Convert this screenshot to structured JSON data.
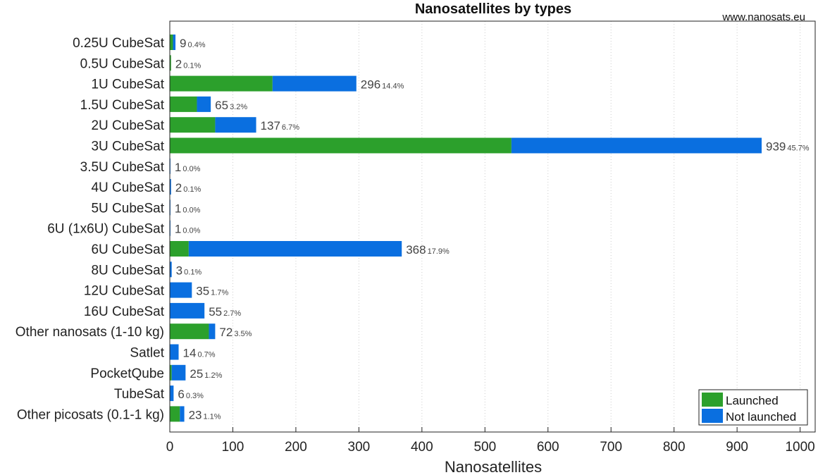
{
  "chart_data": {
    "type": "bar",
    "orientation": "horizontal",
    "stacked": true,
    "title": "Nanosatellites by types",
    "source": "www.nanosats.eu",
    "xlabel": "Nanosatellites",
    "ylabel": "",
    "xlim": [
      0,
      1023
    ],
    "xticks": [
      0,
      100,
      200,
      300,
      400,
      500,
      600,
      700,
      800,
      900,
      1000
    ],
    "grid": "vertical dotted",
    "legend_position": "bottom-right",
    "categories": [
      "0.25U CubeSat",
      "0.5U CubeSat",
      "1U CubeSat",
      "1.5U CubeSat",
      "2U CubeSat",
      "3U CubeSat",
      "3.5U CubeSat",
      "4U CubeSat",
      "5U CubeSat",
      "6U (1x6U) CubeSat",
      "6U CubeSat",
      "8U CubeSat",
      "12U CubeSat",
      "16U CubeSat",
      "Other nanosats (1-10 kg)",
      "Satlet",
      "PocketQube",
      "TubeSat",
      "Other picosats (0.1-1 kg)"
    ],
    "series": [
      {
        "name": "Launched",
        "color": "#2ca02c",
        "values": [
          5,
          2,
          163,
          43,
          72,
          542,
          0,
          0,
          0,
          0,
          30,
          0,
          0,
          0,
          62,
          0,
          3,
          0,
          16
        ]
      },
      {
        "name": "Not launched",
        "color": "#0a6fe0",
        "values": [
          4,
          0,
          133,
          22,
          65,
          397,
          1,
          2,
          1,
          1,
          338,
          3,
          35,
          55,
          10,
          14,
          22,
          6,
          7
        ]
      }
    ],
    "totals": [
      9,
      2,
      296,
      65,
      137,
      939,
      1,
      2,
      1,
      1,
      368,
      3,
      35,
      55,
      72,
      14,
      25,
      6,
      23
    ],
    "percent_labels": [
      "0.4%",
      "0.1%",
      "14.4%",
      "3.2%",
      "6.7%",
      "45.7%",
      "0.0%",
      "0.1%",
      "0.0%",
      "0.0%",
      "17.9%",
      "0.1%",
      "1.7%",
      "2.7%",
      "3.5%",
      "0.7%",
      "1.2%",
      "0.3%",
      "1.1%"
    ]
  }
}
